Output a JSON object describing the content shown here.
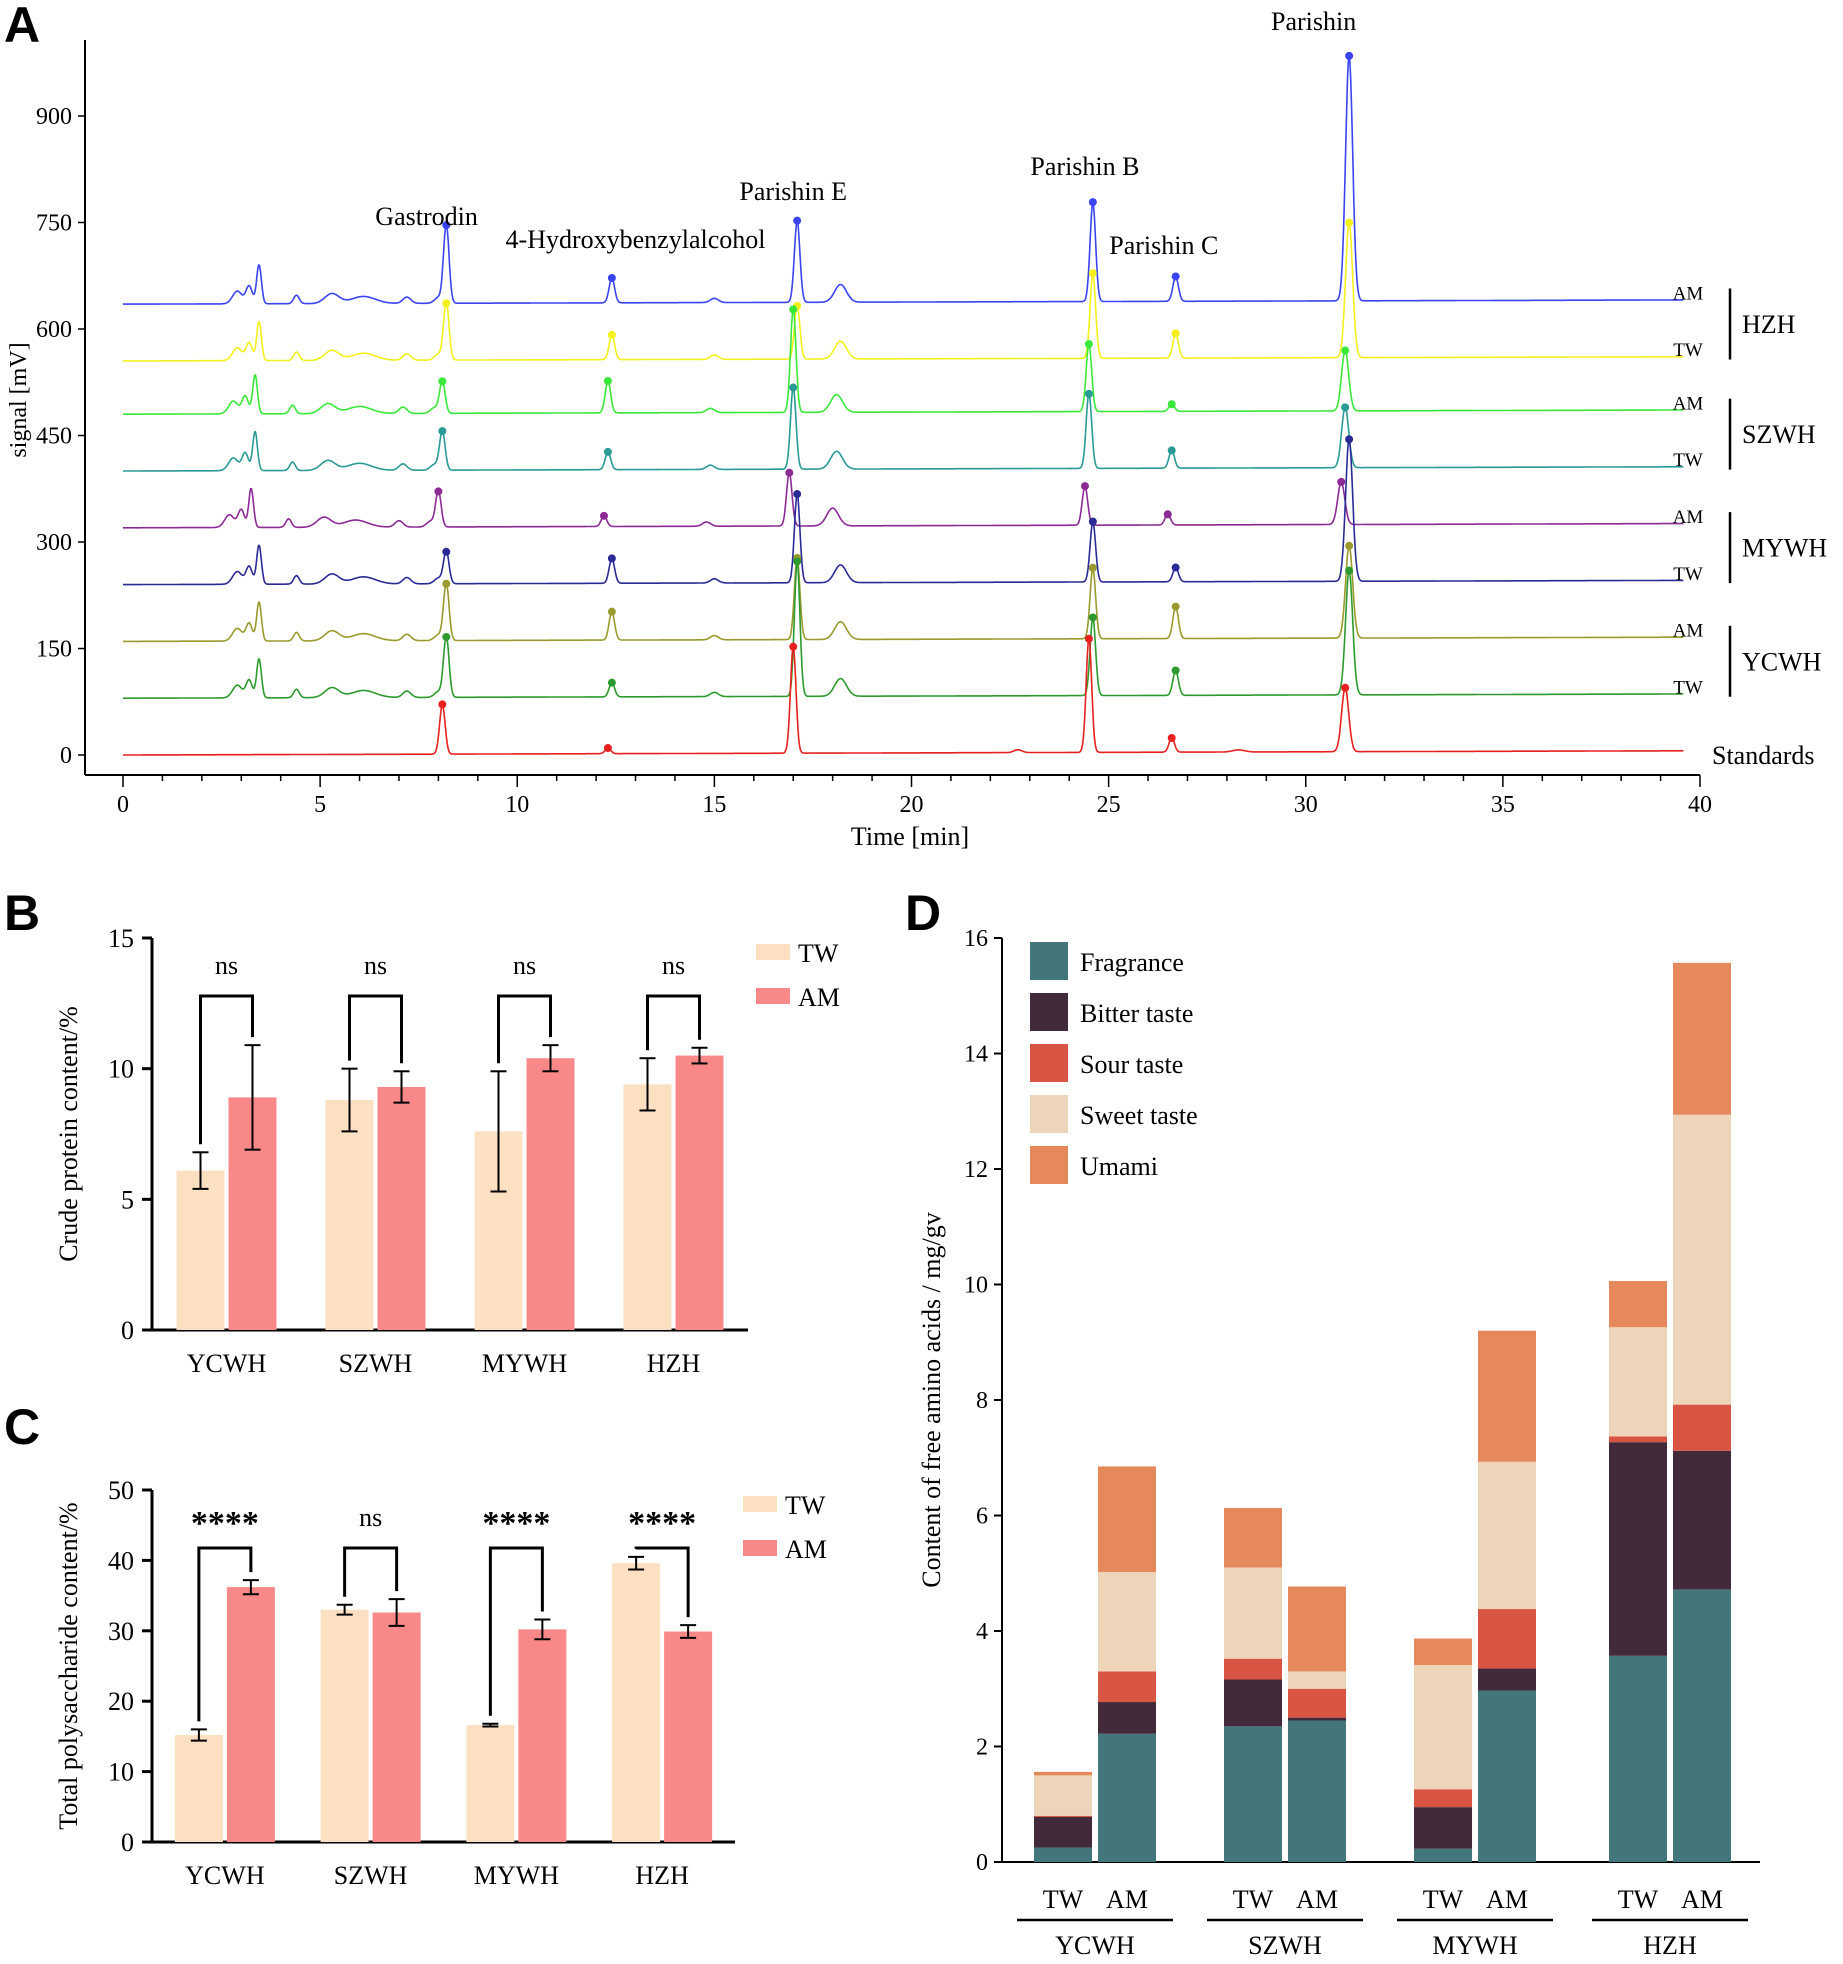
{
  "chart_data": [
    {
      "panel": "A",
      "type": "line",
      "xlabel": "Time [min]",
      "ylabel": "signal [mV]",
      "xlim": [
        0,
        40
      ],
      "ylim": [
        0,
        1000
      ],
      "xticks": [
        "0",
        "5",
        "10",
        "15",
        "20",
        "25",
        "30",
        "35",
        "40"
      ],
      "yticks": [
        "0",
        "150",
        "300",
        "450",
        "600",
        "750",
        "900"
      ],
      "peak_labels": [
        "Gastrodin",
        "4-Hydroxybenzylalcohol",
        "Parishin E",
        "Parishin B",
        "Parishin C",
        "Parishin"
      ],
      "peak_times": [
        8.2,
        12.4,
        17.1,
        24.6,
        26.7,
        31.1
      ],
      "group_labels": [
        "HZH",
        "SZWH",
        "MYWH",
        "YCWH"
      ],
      "standards_label": "Standards",
      "series": [
        {
          "name": "AM",
          "group": "HZH",
          "color": "#3a44f0",
          "baseline": 635,
          "peaks": [
            110,
            35,
            115,
            140,
            35,
            345
          ],
          "offset": 0
        },
        {
          "name": "TW",
          "group": "HZH",
          "color": "#f4f01e",
          "baseline": 555,
          "peaks": [
            80,
            35,
            75,
            120,
            35,
            190
          ],
          "offset": 0
        },
        {
          "name": "AM",
          "group": "SZWH",
          "color": "#3ae83a",
          "baseline": 480,
          "peaks": [
            45,
            45,
            145,
            95,
            10,
            85
          ],
          "offset": -0.1
        },
        {
          "name": "TW",
          "group": "SZWH",
          "color": "#2a9a96",
          "baseline": 400,
          "peaks": [
            55,
            25,
            115,
            105,
            25,
            85
          ],
          "offset": -0.1
        },
        {
          "name": "AM",
          "group": "MYWH",
          "color": "#8c2a96",
          "baseline": 320,
          "peaks": [
            50,
            15,
            75,
            55,
            15,
            60
          ],
          "offset": -0.2
        },
        {
          "name": "TW",
          "group": "MYWH",
          "color": "#2a2a96",
          "baseline": 240,
          "peaks": [
            45,
            35,
            125,
            85,
            20,
            200
          ],
          "offset": 0
        },
        {
          "name": "AM",
          "group": "YCWH",
          "color": "#9a9a2e",
          "baseline": 160,
          "peaks": [
            80,
            40,
            115,
            100,
            45,
            130
          ],
          "offset": 0
        },
        {
          "name": "TW",
          "group": "YCWH",
          "color": "#2e9a2e",
          "baseline": 80,
          "peaks": [
            85,
            20,
            190,
            110,
            35,
            175
          ],
          "offset": 0
        },
        {
          "name": "Standards",
          "group": "Standards",
          "color": "#e82020",
          "baseline": 0,
          "peaks": [
            70,
            8,
            150,
            160,
            20,
            90
          ],
          "offset": -0.1
        }
      ]
    },
    {
      "panel": "B",
      "type": "bar",
      "ylabel": "Crude protein content/%",
      "ylim": [
        0,
        15
      ],
      "yticks": [
        "0",
        "5",
        "10",
        "15"
      ],
      "categories": [
        "YCWH",
        "SZWH",
        "MYWH",
        "HZH"
      ],
      "series": [
        {
          "name": "TW",
          "color": "#fde0c2",
          "values": [
            6.1,
            8.8,
            7.6,
            9.4
          ],
          "errors": [
            0.7,
            1.2,
            2.3,
            1.0
          ]
        },
        {
          "name": "AM",
          "color": "#f98888",
          "values": [
            8.9,
            9.3,
            10.4,
            10.5
          ],
          "errors": [
            2.0,
            0.6,
            0.5,
            0.3
          ]
        }
      ],
      "significance": [
        "ns",
        "ns",
        "ns",
        "ns"
      ]
    },
    {
      "panel": "C",
      "type": "bar",
      "ylabel": "Total polysaccharide content/%",
      "ylim": [
        0,
        50
      ],
      "yticks": [
        "0",
        "10",
        "20",
        "30",
        "40",
        "50"
      ],
      "categories": [
        "YCWH",
        "SZWH",
        "MYWH",
        "HZH"
      ],
      "series": [
        {
          "name": "TW",
          "color": "#fde0c2",
          "values": [
            15.2,
            33.0,
            16.6,
            39.6
          ],
          "errors": [
            0.8,
            0.7,
            0.2,
            0.9
          ]
        },
        {
          "name": "AM",
          "color": "#f98888",
          "values": [
            36.2,
            32.6,
            30.2,
            29.9
          ],
          "errors": [
            1.0,
            1.9,
            1.4,
            0.9
          ]
        }
      ],
      "significance": [
        "****",
        "ns",
        "****",
        "****"
      ]
    },
    {
      "panel": "D",
      "type": "bar",
      "stacked": true,
      "ylabel": "Content of free amino acids / mg/gv",
      "ylim": [
        0,
        16
      ],
      "yticks": [
        "0",
        "2",
        "4",
        "6",
        "8",
        "10",
        "12",
        "14",
        "16"
      ],
      "groups": [
        "YCWH",
        "SZWH",
        "MYWH",
        "HZH"
      ],
      "bars": [
        "TW",
        "AM"
      ],
      "series": [
        {
          "name": "Fragrance",
          "color": "#43767b",
          "values": [
            0.25,
            2.22,
            2.35,
            2.45,
            0.23,
            2.97,
            3.57,
            4.72
          ]
        },
        {
          "name": "Bitter taste",
          "color": "#432a3b",
          "values": [
            0.53,
            0.55,
            0.81,
            0.05,
            0.72,
            0.38,
            3.7,
            2.4
          ]
        },
        {
          "name": "Sour taste",
          "color": "#d85543",
          "values": [
            0.02,
            0.53,
            0.36,
            0.5,
            0.31,
            1.03,
            0.1,
            0.8
          ]
        },
        {
          "name": "Sweet taste",
          "color": "#eed4b8",
          "values": [
            0.7,
            1.72,
            1.58,
            0.3,
            2.15,
            2.55,
            1.89,
            5.02
          ]
        },
        {
          "name": "Umami",
          "color": "#e5885b",
          "values": [
            0.06,
            1.83,
            1.03,
            1.47,
            0.46,
            2.27,
            0.8,
            2.63
          ]
        }
      ]
    }
  ],
  "panel_labels": {
    "a": "A",
    "b": "B",
    "c": "C",
    "d": "D"
  }
}
